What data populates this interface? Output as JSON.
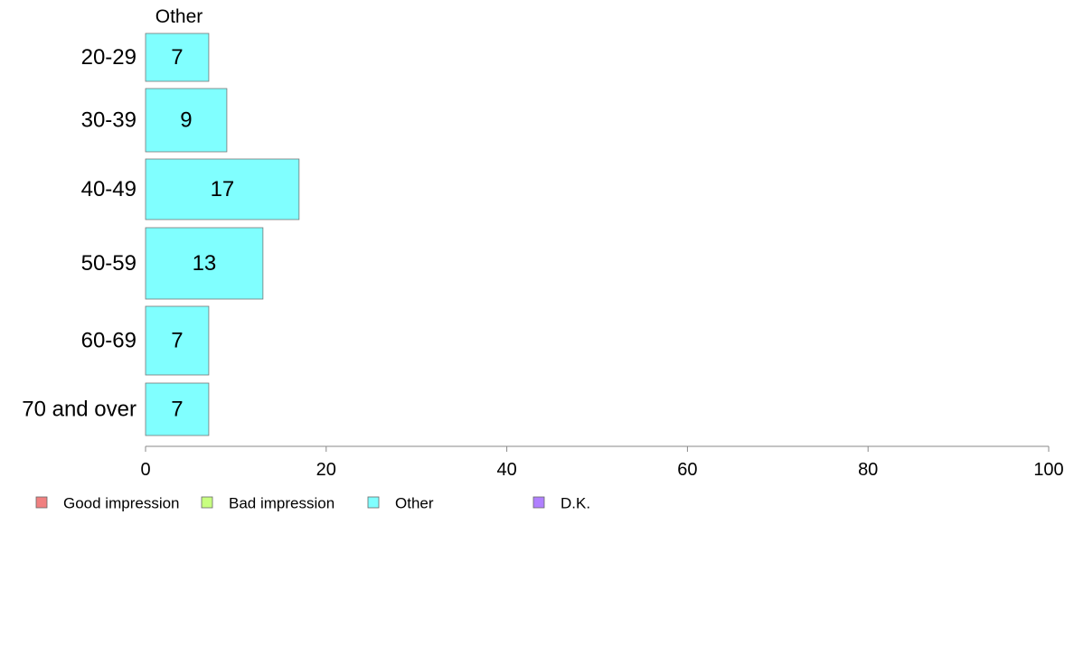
{
  "chart_data": {
    "type": "bar",
    "orientation": "horizontal",
    "title": "Other",
    "categories": [
      "20-29",
      "30-39",
      "40-49",
      "50-59",
      "60-69",
      "70 and over"
    ],
    "series": [
      {
        "name": "Other",
        "values": [
          7,
          9,
          17,
          13,
          7,
          7
        ],
        "color": "#80ffff"
      }
    ],
    "xlim": [
      0,
      100
    ],
    "xticks": [
      0,
      20,
      40,
      60,
      80,
      100
    ],
    "grid": false,
    "legend_position": "bottom",
    "legend": [
      {
        "label": "Good impression",
        "color": "#f08080"
      },
      {
        "label": "Bad impression",
        "color": "#c8ff80"
      },
      {
        "label": "Other",
        "color": "#80ffff"
      },
      {
        "label": "D.K.",
        "color": "#b080ff"
      }
    ]
  }
}
